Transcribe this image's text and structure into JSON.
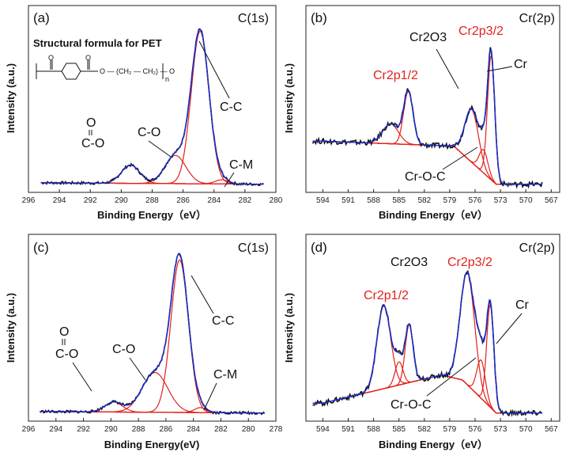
{
  "figure": "XPS spectra panels",
  "colors": {
    "measured": "#111111",
    "envelope": "#1f2fd6",
    "fit": "#e3201b",
    "background": "#8b6a2a"
  },
  "chart_data": [
    {
      "type": "line",
      "panel": "(a)",
      "title": "C(1s)",
      "xlabel": "Binding Energy（eV）",
      "ylabel": "Intensity (a.u.)",
      "xlim": [
        296,
        280
      ],
      "xticks": [
        "296",
        "294",
        "292",
        "290",
        "288",
        "286",
        "284",
        "282",
        "280"
      ],
      "ylim": [
        0,
        1.05
      ],
      "baseline": {
        "x": [
          296,
          280
        ],
        "y": [
          0.03,
          0.02
        ]
      },
      "components": [
        {
          "name": "C-C",
          "center": 284.9,
          "height": 0.92,
          "fwhm": 1.35
        },
        {
          "name": "C-O",
          "center": 286.5,
          "height": 0.17,
          "fwhm": 1.6
        },
        {
          "name": "C-O (O=C-O)",
          "center": 289.4,
          "height": 0.11,
          "fwhm": 1.4
        },
        {
          "name": "C-M",
          "center": 283.5,
          "height": 0.025,
          "fwhm": 1.0
        }
      ],
      "noise": 0.008,
      "annotations": [
        "C-C",
        "C-O",
        "O",
        "C-O",
        "C-M"
      ],
      "structure_title": "Structural formula for PET",
      "structure": {
        "o1": "O",
        "o2": "O",
        "chain": "O — (CH₂ — CH₂) — O",
        "n": "n"
      }
    },
    {
      "type": "line",
      "panel": "(b)",
      "title": "Cr(2p)",
      "xlabel": "Binding Energy（eV）",
      "ylabel": "Intensity (a.u.)",
      "xlim": [
        596,
        566
      ],
      "xticks": [
        "594",
        "591",
        "588",
        "585",
        "582",
        "579",
        "576",
        "573",
        "570",
        "567"
      ],
      "ylim": [
        0,
        1.05
      ],
      "baseline": {
        "x": [
          594,
          578.5,
          577,
          573.5,
          569
        ],
        "y": [
          0.28,
          0.25,
          0.18,
          0.02,
          0.02
        ]
      },
      "components": [
        {
          "name": "Cr",
          "center": 574.1,
          "height": 0.75,
          "fwhm": 1.0
        },
        {
          "name": "Cr2O3 2p3/2",
          "center": 576.4,
          "height": 0.32,
          "fwhm": 1.9
        },
        {
          "name": "Cr2p1/2",
          "center": 583.9,
          "height": 0.32,
          "fwhm": 1.3
        },
        {
          "name": "Cr2p1/2 b",
          "center": 586.0,
          "height": 0.12,
          "fwhm": 2.2
        },
        {
          "name": "Cr-O-C",
          "center": 575.0,
          "height": 0.14,
          "fwhm": 1.2
        }
      ],
      "noise": 0.015,
      "annotations": [
        "Cr2O3",
        "Cr2p3/2",
        "Cr2p1/2",
        "Cr",
        "Cr-O-C"
      ]
    },
    {
      "type": "line",
      "panel": "(c)",
      "title": "C(1s)",
      "xlabel": "Binding Energy(eV)",
      "ylabel": "Intensity (a.u.)",
      "xlim": [
        296,
        278
      ],
      "xticks": [
        "296",
        "294",
        "292",
        "290",
        "288",
        "286",
        "284",
        "282",
        "280",
        "278"
      ],
      "ylim": [
        0,
        1.05
      ],
      "baseline": {
        "x": [
          296,
          278
        ],
        "y": [
          0.03,
          0.02
        ]
      },
      "components": [
        {
          "name": "C-C",
          "center": 285.0,
          "height": 0.92,
          "fwhm": 1.5
        },
        {
          "name": "C-O",
          "center": 286.8,
          "height": 0.24,
          "fwhm": 2.2
        },
        {
          "name": "C-O (O=C-O)",
          "center": 289.8,
          "height": 0.06,
          "fwhm": 1.5
        },
        {
          "name": "C-M",
          "center": 283.5,
          "height": 0.03,
          "fwhm": 1.0
        }
      ],
      "noise": 0.008,
      "annotations": [
        "C-C",
        "C-O",
        "O",
        "C-O",
        "C-M"
      ]
    },
    {
      "type": "line",
      "panel": "(d)",
      "title": "Cr(2p)",
      "xlabel": "Binding Energy（eV）",
      "ylabel": "Intensity (a.u.)",
      "xlim": [
        596,
        566
      ],
      "xticks": [
        "594",
        "591",
        "588",
        "585",
        "582",
        "579",
        "576",
        "573",
        "570",
        "567"
      ],
      "ylim": [
        0,
        1.05
      ],
      "baseline": {
        "x": [
          594,
          580,
          577.5,
          573.5,
          569
        ],
        "y": [
          0.08,
          0.25,
          0.22,
          0.02,
          0.02
        ]
      },
      "components": [
        {
          "name": "Cr",
          "center": 574.2,
          "height": 0.62,
          "fwhm": 1.0
        },
        {
          "name": "Cr2O3 2p3/2",
          "center": 576.9,
          "height": 0.68,
          "fwhm": 2.0
        },
        {
          "name": "Cr2p1/2",
          "center": 583.8,
          "height": 0.35,
          "fwhm": 1.1
        },
        {
          "name": "Cr2p1/2 b",
          "center": 586.8,
          "height": 0.5,
          "fwhm": 1.9
        },
        {
          "name": "Cr-O-C",
          "center": 575.3,
          "height": 0.23,
          "fwhm": 1.2
        },
        {
          "name": "Cr2p1/2 c",
          "center": 585.0,
          "height": 0.14,
          "fwhm": 1.1
        }
      ],
      "noise": 0.015,
      "annotations": [
        "Cr2O3",
        "Cr2p3/2",
        "Cr2p1/2",
        "Cr",
        "Cr-O-C"
      ]
    }
  ]
}
